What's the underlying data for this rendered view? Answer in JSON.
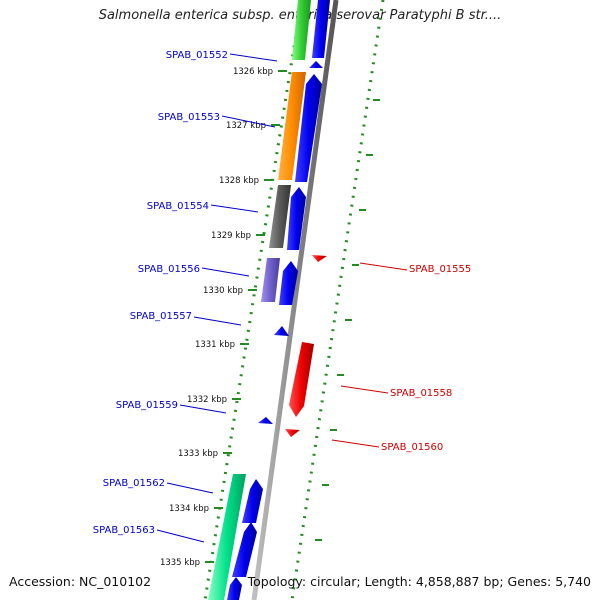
{
  "title": "Salmonella enterica subsp. enterica serovar Paratyphi B str....",
  "footer": {
    "accession": "Accession: NC_010102",
    "summary": "Topology: circular; Length: 4,858,887 bp; Genes: 5,740"
  },
  "colors": {
    "forward_cds": "#0000ee",
    "reverse_cds": "#ee0000",
    "gc_dots": "#228b22",
    "backbone": "#909090",
    "left_label": "#0000cc",
    "right_label": "#cc0000"
  },
  "scale_ticks": [
    "1326 kbp",
    "1327 kbp",
    "1328 kbp",
    "1329 kbp",
    "1330 kbp",
    "1331 kbp",
    "1332 kbp",
    "1333 kbp",
    "1334 kbp",
    "1335 kbp"
  ],
  "left_labels": [
    "SPAB_01552",
    "SPAB_01553",
    "SPAB_01554",
    "SPAB_01556",
    "SPAB_01557",
    "SPAB_01559",
    "SPAB_01562",
    "SPAB_01563"
  ],
  "right_labels": [
    "SPAB_01555",
    "SPAB_01558",
    "SPAB_01560"
  ]
}
